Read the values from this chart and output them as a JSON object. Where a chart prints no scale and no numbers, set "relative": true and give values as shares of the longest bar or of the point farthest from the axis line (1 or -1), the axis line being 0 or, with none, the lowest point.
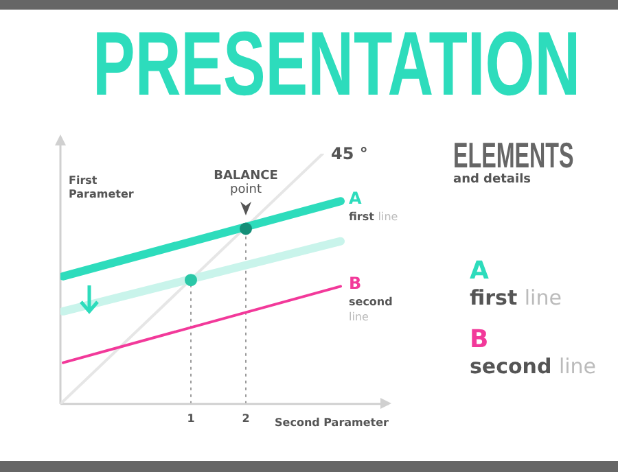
{
  "chart_data": {
    "type": "line",
    "title": "PRESENTATION",
    "subtitle": "ELEMENTS",
    "xlabel": "Second Parameter",
    "ylabel": "First Parameter",
    "relative": true,
    "xlim": [
      -1.375,
      4.6
    ],
    "xticks": [
      1,
      2
    ],
    "grid": false,
    "legend": "right",
    "marker": "none",
    "line_style": "solid",
    "series": [
      {
        "color": "#e6e6e6",
        "x": [
          -1.375,
          3.4
        ],
        "values": [
          0,
          1
        ]
      },
      {
        "color": "#c9f4eb",
        "x": [
          -1.325,
          3.725
        ],
        "values": [
          0.37,
          0.65
        ]
      },
      {
        "name": "B second line",
        "color": "#f2399a",
        "x": [
          -1.325,
          3.725
        ],
        "values": [
          0.165,
          0.47
        ]
      },
      {
        "name": "A first line",
        "color": "#2ddcbc",
        "x": [
          -1.325,
          3.725
        ],
        "values": [
          0.51,
          0.81
        ]
      },
      {
        "type": "scatter",
        "marker": "circle",
        "x": [
          1,
          2
        ],
        "values": [
          0.495,
          0.7
        ],
        "colors": [
          "#2bc7a7",
          "#148f78"
        ]
      }
    ],
    "ref_lines": [
      {
        "axis": "x",
        "value": 1,
        "color": "#9a9a9a",
        "line_style": "dotted"
      },
      {
        "axis": "x",
        "value": 2,
        "color": "#9a9a9a",
        "line_style": "dotted"
      }
    ],
    "annotations": [
      "and details",
      {
        "text": "BALANCE point",
        "x": 2,
        "y": 0.7
      },
      {
        "text": "45 °",
        "x": 3.4,
        "y": 1
      }
    ]
  }
}
